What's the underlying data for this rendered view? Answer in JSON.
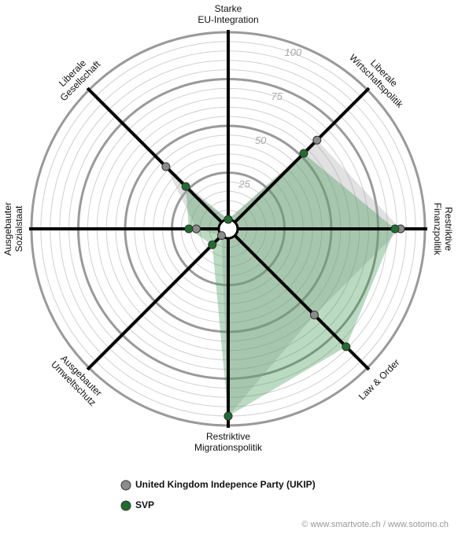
{
  "chart_data": {
    "type": "radar",
    "categories": [
      "Starke\nEU-Integration",
      "Liberale\nWirtschaftspolitik",
      "Restriktive\nFinanzpolitik",
      "Law & Order",
      "Restriktive\nMigrationspolitik",
      "Ausgebauter\nUmweltschutz",
      "Ausgebauter\nSozialstaat",
      "Liberale\nGesellschaft"
    ],
    "series": [
      {
        "name": "United Kingdom Indepence Party (UKIP)",
        "color": "#8c8c8c",
        "values": [
          0,
          62,
          87,
          60,
          95,
          0,
          12,
          42
        ]
      },
      {
        "name": "SVP",
        "color": "#1f6e2e",
        "values": [
          0,
          52,
          84,
          84,
          95,
          7,
          16,
          27
        ]
      }
    ],
    "rlim": [
      0,
      100
    ],
    "rticks": [
      25,
      50,
      75,
      100
    ],
    "grid": true,
    "source": "© www.smartvote.ch / www.sotomo.ch"
  }
}
